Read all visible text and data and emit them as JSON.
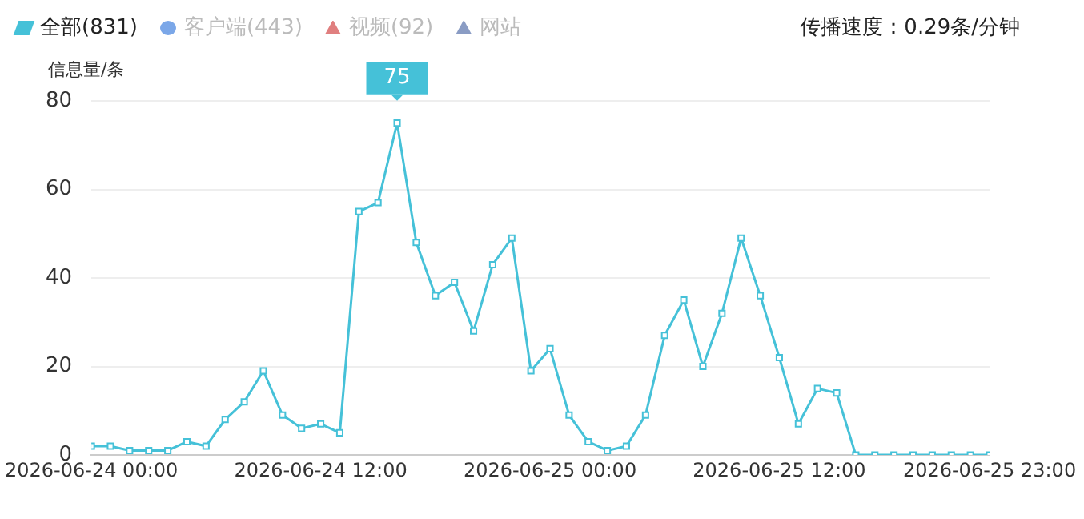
{
  "chart_data": {
    "type": "line",
    "ylabel": "信息量/条",
    "x": [
      "2026-06-24T00:00",
      "2026-06-24T01:00",
      "2026-06-24T02:00",
      "2026-06-24T03:00",
      "2026-06-24T04:00",
      "2026-06-24T05:00",
      "2026-06-24T06:00",
      "2026-06-24T07:00",
      "2026-06-24T08:00",
      "2026-06-24T09:00",
      "2026-06-24T10:00",
      "2026-06-24T11:00",
      "2026-06-24T12:00",
      "2026-06-24T13:00",
      "2026-06-24T14:00",
      "2026-06-24T15:00",
      "2026-06-24T16:00",
      "2026-06-24T17:00",
      "2026-06-24T18:00",
      "2026-06-24T19:00",
      "2026-06-24T20:00",
      "2026-06-24T21:00",
      "2026-06-24T22:00",
      "2026-06-24T23:00",
      "2026-06-25T00:00",
      "2026-06-25T01:00",
      "2026-06-25T02:00",
      "2026-06-25T03:00",
      "2026-06-25T04:00",
      "2026-06-25T05:00",
      "2026-06-25T06:00",
      "2026-06-25T07:00",
      "2026-06-25T08:00",
      "2026-06-25T09:00",
      "2026-06-25T10:00",
      "2026-06-25T11:00",
      "2026-06-25T12:00",
      "2026-06-25T13:00",
      "2026-06-25T14:00",
      "2026-06-25T15:00",
      "2026-06-25T16:00",
      "2026-06-25T17:00",
      "2026-06-25T18:00",
      "2026-06-25T19:00",
      "2026-06-25T20:00",
      "2026-06-25T21:00",
      "2026-06-25T22:00",
      "2026-06-25T23:00"
    ],
    "series": [
      {
        "name": "全部(831)",
        "color": "#45c1d8",
        "marker": "square",
        "values": [
          2,
          2,
          1,
          1,
          1,
          3,
          2,
          8,
          12,
          19,
          9,
          6,
          7,
          5,
          55,
          57,
          75,
          48,
          36,
          39,
          28,
          43,
          49,
          19,
          24,
          9,
          3,
          1,
          2,
          9,
          27,
          35,
          20,
          32,
          49,
          36,
          22,
          7,
          15,
          14,
          0,
          0,
          0,
          0,
          0,
          0,
          0,
          0
        ]
      },
      {
        "name": "客户端(443)",
        "color": "#7ba7e8",
        "marker": "circle",
        "values": [
          null,
          null,
          null,
          null,
          null,
          null,
          null,
          null,
          null,
          null,
          null,
          null,
          null,
          null,
          null,
          null,
          null,
          null,
          null,
          null,
          null,
          null,
          null,
          null,
          null,
          null,
          null,
          null,
          null,
          null,
          null,
          null,
          null,
          null,
          null,
          null,
          null,
          null,
          null,
          null,
          null,
          null,
          null,
          null,
          null,
          null,
          null,
          null
        ]
      },
      {
        "name": "视频(92)",
        "color": "#e07f7f",
        "marker": "triangle",
        "values": [
          null,
          null,
          null,
          null,
          null,
          null,
          null,
          null,
          null,
          null,
          null,
          null,
          null,
          null,
          null,
          null,
          null,
          null,
          null,
          null,
          null,
          null,
          null,
          null,
          null,
          null,
          null,
          null,
          null,
          null,
          null,
          null,
          null,
          null,
          null,
          null,
          null,
          null,
          null,
          null,
          null,
          null,
          null,
          null,
          null,
          null,
          null,
          null
        ]
      },
      {
        "name": "网站",
        "color": "#8a9cc4",
        "marker": "triangle",
        "values": [
          null,
          null,
          null,
          null,
          null,
          null,
          null,
          null,
          null,
          null,
          null,
          null,
          null,
          null,
          null,
          null,
          null,
          null,
          null,
          null,
          null,
          null,
          null,
          null,
          null,
          null,
          null,
          null,
          null,
          null,
          null,
          null,
          null,
          null,
          null,
          null,
          null,
          null,
          null,
          null,
          null,
          null,
          null,
          null,
          null,
          null,
          null,
          null
        ]
      }
    ],
    "xlim": [
      "2026-06-24T00:00",
      "2026-06-25T23:00"
    ],
    "xticks": [
      {
        "value": "2026-06-24T00:00",
        "label": "2026-06-24 00:00"
      },
      {
        "value": "2026-06-24T12:00",
        "label": "2026-06-24 12:00"
      },
      {
        "value": "2026-06-25T00:00",
        "label": "2026-06-25 00:00"
      },
      {
        "value": "2026-06-25T12:00",
        "label": "2026-06-25 12:00"
      },
      {
        "value": "2026-06-25T23:00",
        "label": "2026-06-25 23:00"
      }
    ],
    "ylim": [
      0,
      80
    ],
    "yticks": [
      0,
      20,
      40,
      60,
      80
    ],
    "grid": "y",
    "legend": "top",
    "line_style": "solid",
    "annotations": [
      {
        "text": "75",
        "x": "2026-06-24T16:00",
        "y": 75
      },
      "传播速度：0.29条/分钟"
    ]
  }
}
